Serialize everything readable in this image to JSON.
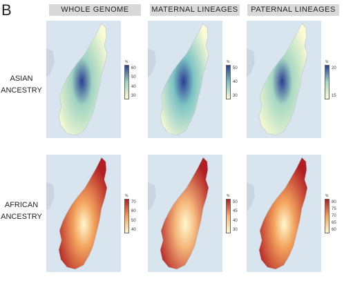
{
  "panel_letter": "B",
  "columns": [
    "WHOLE GENOME",
    "MATERNAL LINEAGES",
    "PATERNAL LINEAGES"
  ],
  "rows": [
    {
      "label_lines": [
        "ASIAN",
        "ANCESTRY"
      ]
    },
    {
      "label_lines": [
        "AFRICAN",
        "ANCESTRY"
      ]
    }
  ],
  "legend_unit": "%",
  "maps": [
    {
      "row": 0,
      "col": 0,
      "scale": "blue",
      "ticks": [
        "60",
        "50",
        "40",
        "30"
      ],
      "colors": {
        "low": "#fbfbd4",
        "mid": "#9fd3c1",
        "high": "#2b3e93"
      }
    },
    {
      "row": 0,
      "col": 1,
      "scale": "blue",
      "ticks": [
        "50",
        "40",
        "30"
      ],
      "colors": {
        "low": "#fbfbd4",
        "mid": "#7cc3c4",
        "high": "#2b3e93"
      }
    },
    {
      "row": 0,
      "col": 2,
      "scale": "blue",
      "ticks": [
        "20",
        "15"
      ],
      "colors": {
        "low": "#fbfbd4",
        "mid": "#a6d8c3",
        "high": "#2b3e93"
      }
    },
    {
      "row": 1,
      "col": 0,
      "scale": "red",
      "ticks": [
        "70",
        "60",
        "50",
        "40"
      ],
      "colors": {
        "low": "#fff9d0",
        "mid": "#f3a35d",
        "high": "#b11f24"
      }
    },
    {
      "row": 1,
      "col": 1,
      "scale": "red",
      "ticks": [
        "50",
        "45",
        "40",
        "30"
      ],
      "colors": {
        "low": "#fff9d0",
        "mid": "#f5b77a",
        "high": "#b11f24"
      }
    },
    {
      "row": 1,
      "col": 2,
      "scale": "red",
      "ticks": [
        "80",
        "75",
        "70",
        "65",
        "60"
      ],
      "colors": {
        "low": "#fff9d0",
        "mid": "#f3a35d",
        "high": "#b11f24"
      }
    }
  ]
}
